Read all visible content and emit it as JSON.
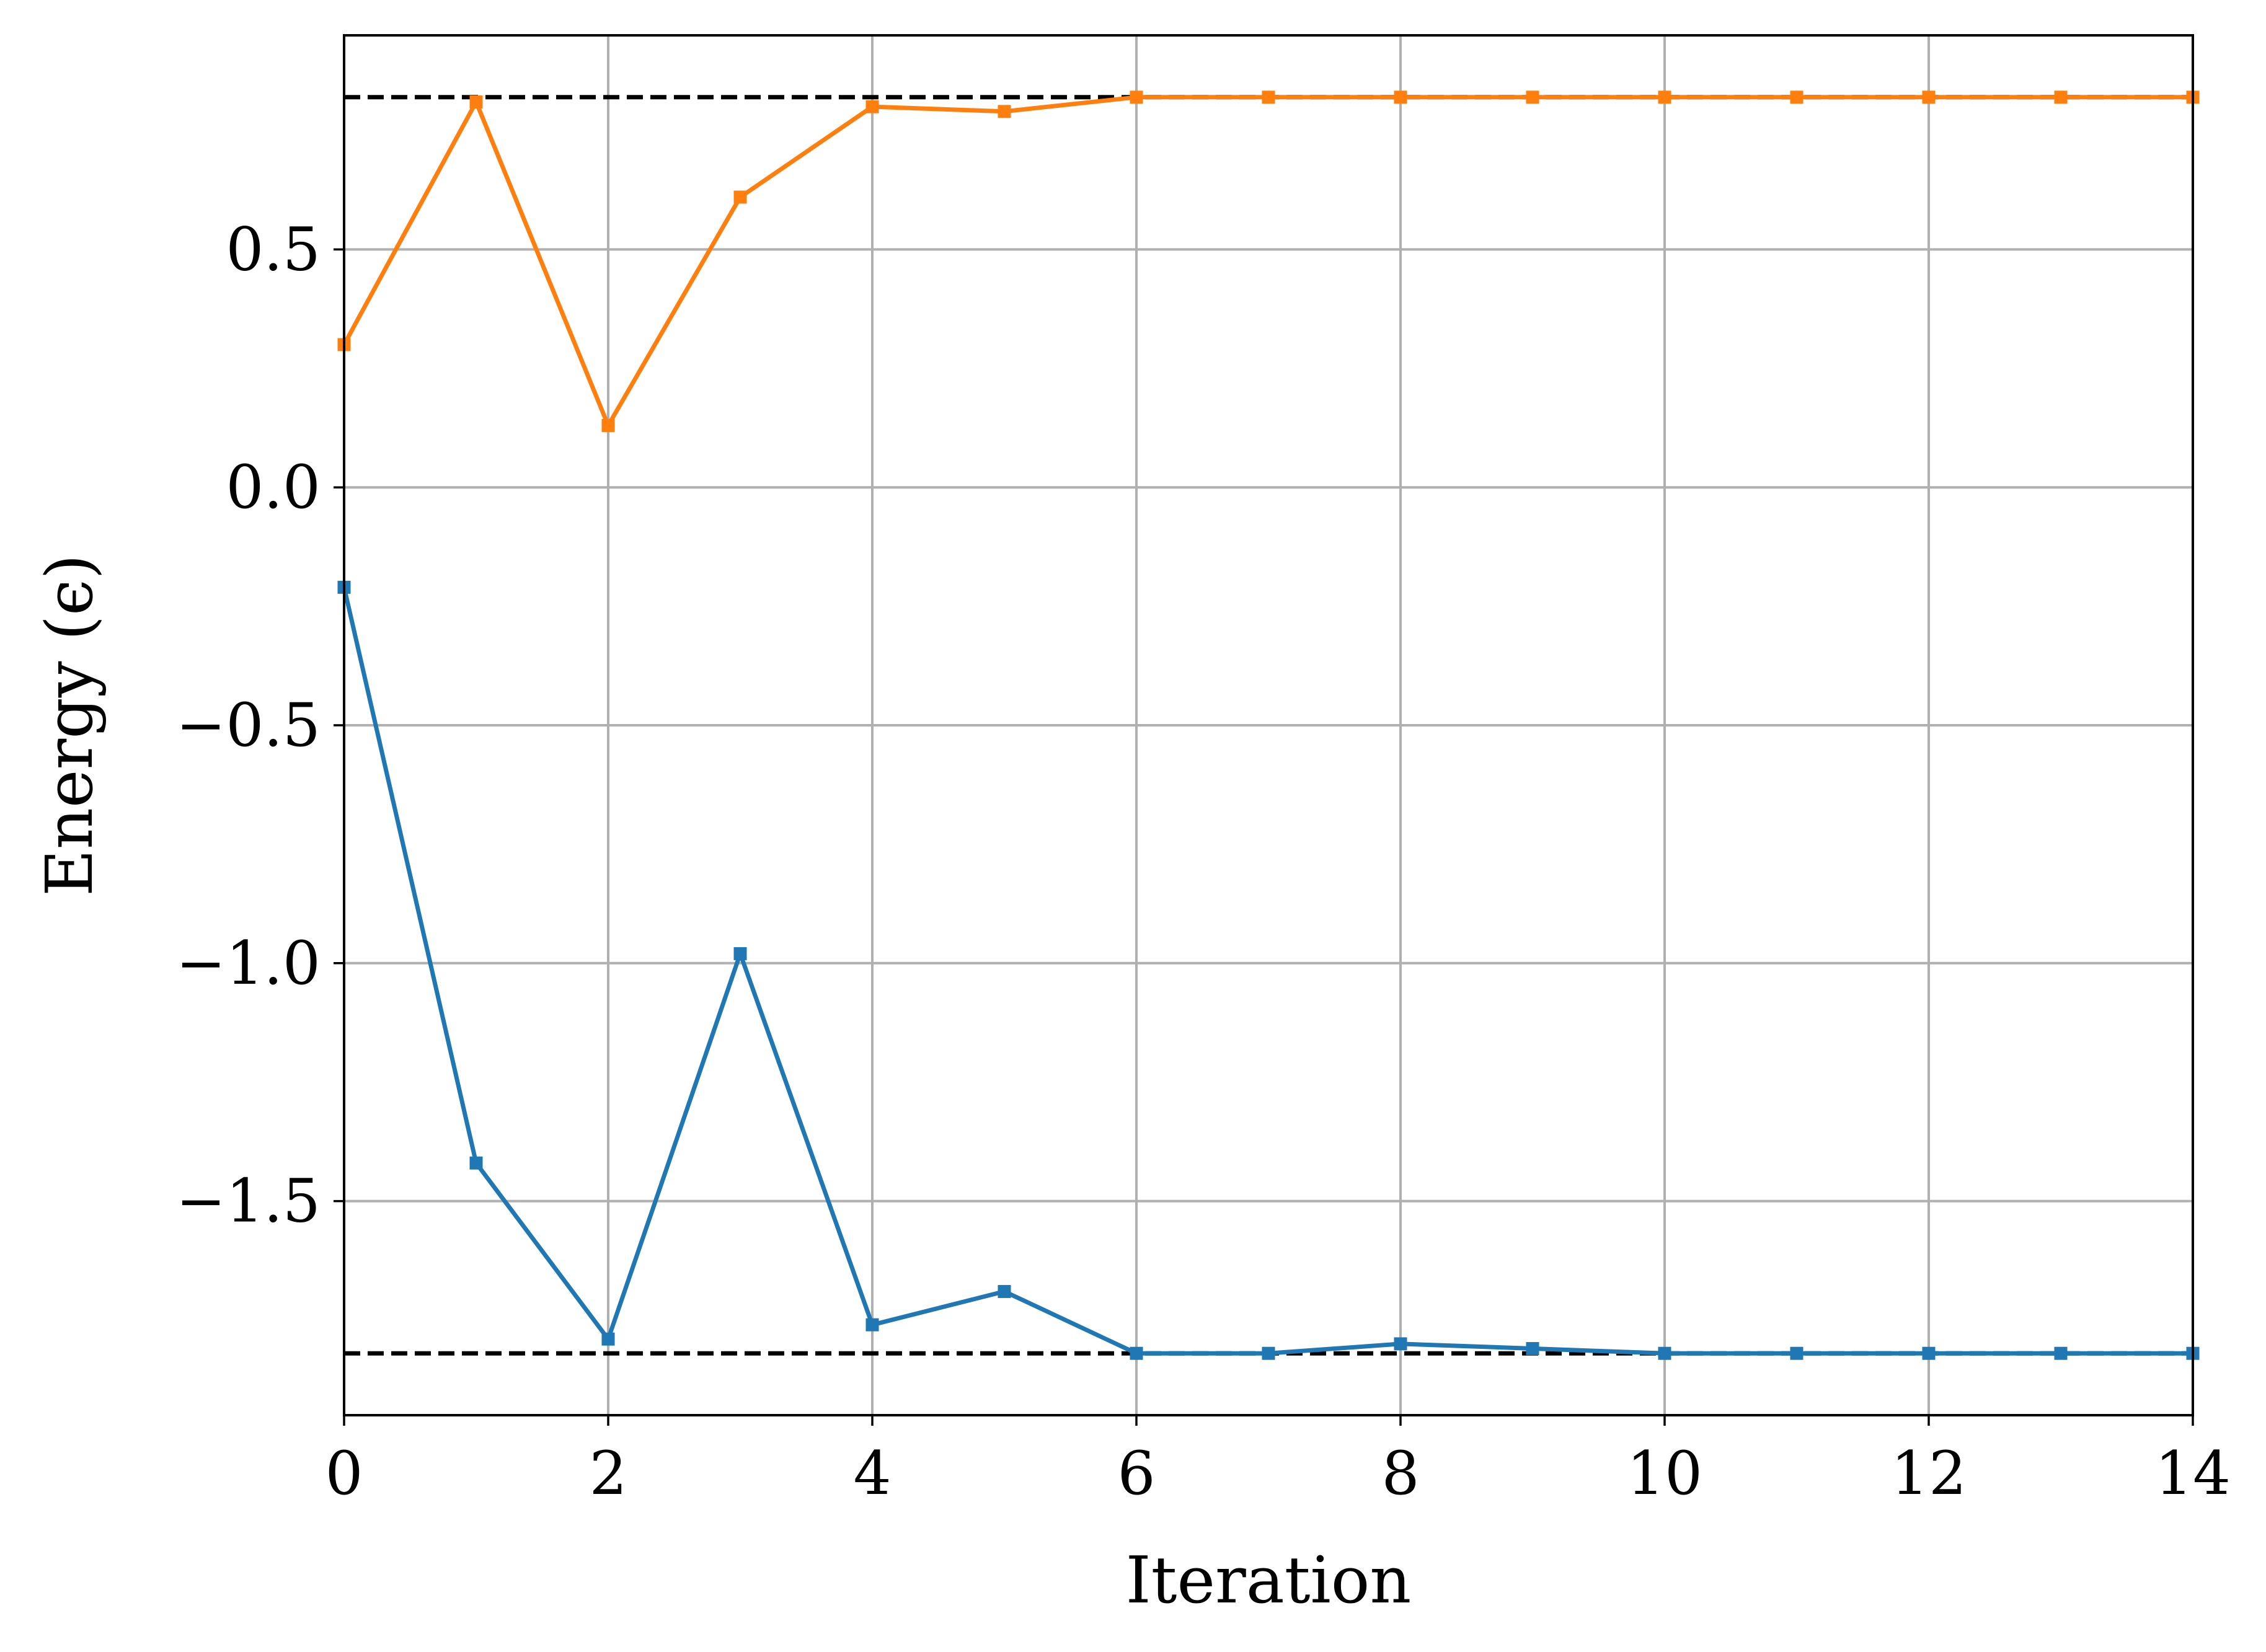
{
  "chart_data": {
    "type": "line",
    "title": "",
    "xlabel": "Iteration",
    "ylabel": "Energy (ϵ)",
    "xlim": [
      0,
      14
    ],
    "ylim": [
      -1.95,
      0.95
    ],
    "xticks": [
      0,
      2,
      4,
      6,
      8,
      10,
      12,
      14
    ],
    "xtick_labels": [
      "0",
      "2",
      "4",
      "6",
      "8",
      "10",
      "12",
      "14"
    ],
    "yticks": [
      0.5,
      0.0,
      -0.5,
      -1.0,
      -1.5
    ],
    "ytick_labels": [
      "0.5",
      "0.0",
      "−0.5",
      "−1.0",
      "−1.5"
    ],
    "grid": true,
    "x": [
      0,
      1,
      2,
      3,
      4,
      5,
      6,
      7,
      8,
      9,
      10,
      11,
      12,
      13,
      14
    ],
    "series": [
      {
        "color": "#ff7f0e",
        "marker": "square",
        "values": [
          0.3,
          0.81,
          0.13,
          0.61,
          0.8,
          0.79,
          0.82,
          0.82,
          0.82,
          0.82,
          0.82,
          0.82,
          0.82,
          0.82,
          0.82
        ]
      },
      {
        "color": "#1f77b4",
        "marker": "square",
        "values": [
          -0.21,
          -1.42,
          -1.79,
          -0.98,
          -1.76,
          -1.69,
          -1.82,
          -1.82,
          -1.8,
          -1.81,
          -1.82,
          -1.82,
          -1.82,
          -1.82,
          -1.82
        ]
      }
    ],
    "reference_lines": [
      {
        "y": 0.82,
        "color": "#000000",
        "style": "dashed"
      },
      {
        "y": -1.82,
        "color": "#000000",
        "style": "dashed"
      }
    ]
  }
}
